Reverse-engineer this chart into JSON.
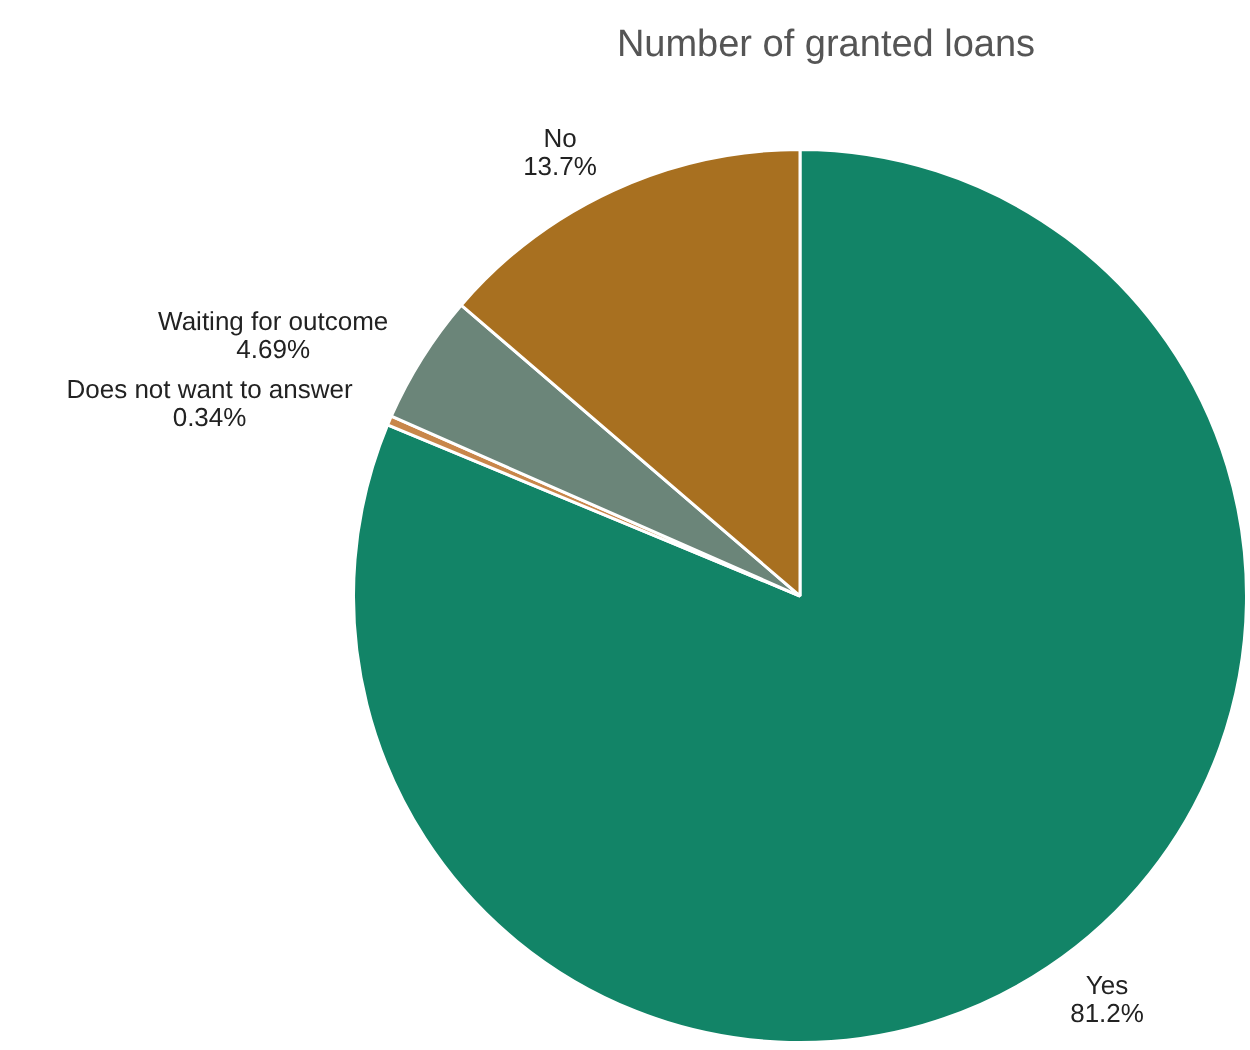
{
  "chart_data": {
    "type": "pie",
    "title": "Number of granted loans",
    "categories": [
      "Yes",
      "Does not want to answer",
      "Waiting for outcome",
      "No"
    ],
    "values": [
      81.2,
      0.34,
      4.69,
      13.7
    ],
    "value_labels": [
      "81.2%",
      "0.34%",
      "4.69%",
      "13.7%"
    ],
    "colors": [
      "#128467",
      "#c8864a",
      "#6b8579",
      "#a87020"
    ],
    "legend": false
  }
}
